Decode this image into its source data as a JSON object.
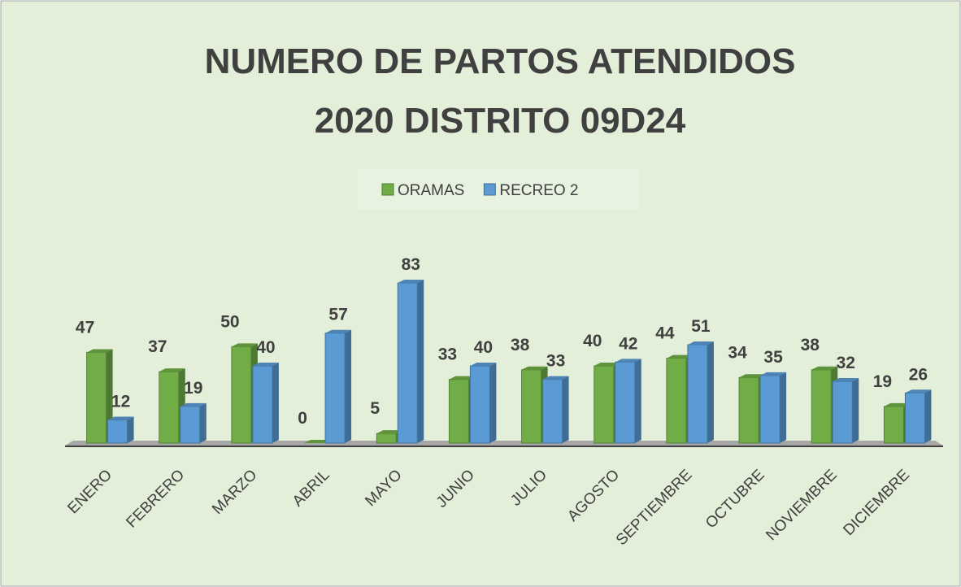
{
  "chart_data": {
    "type": "bar3d",
    "title": [
      "NUMERO DE PARTOS ATENDIDOS",
      "2020 DISTRITO 09D24"
    ],
    "categories": [
      "ENERO",
      "FEBRERO",
      "MARZO",
      "ABRIL",
      "MAYO",
      "JUNIO",
      "JULIO",
      "AGOSTO",
      "SEPTIEMBRE",
      "OCTUBRE",
      "NOVIEMBRE",
      "DICIEMBRE"
    ],
    "series": [
      {
        "name": "ORAMAS",
        "color": "#70ad47",
        "values": [
          47,
          37,
          50,
          0,
          5,
          33,
          38,
          40,
          44,
          34,
          38,
          19
        ]
      },
      {
        "name": "RECREO 2",
        "color": "#5b9bd5",
        "values": [
          12,
          19,
          40,
          57,
          83,
          40,
          33,
          42,
          51,
          35,
          32,
          26
        ]
      }
    ],
    "legend": "top"
  }
}
